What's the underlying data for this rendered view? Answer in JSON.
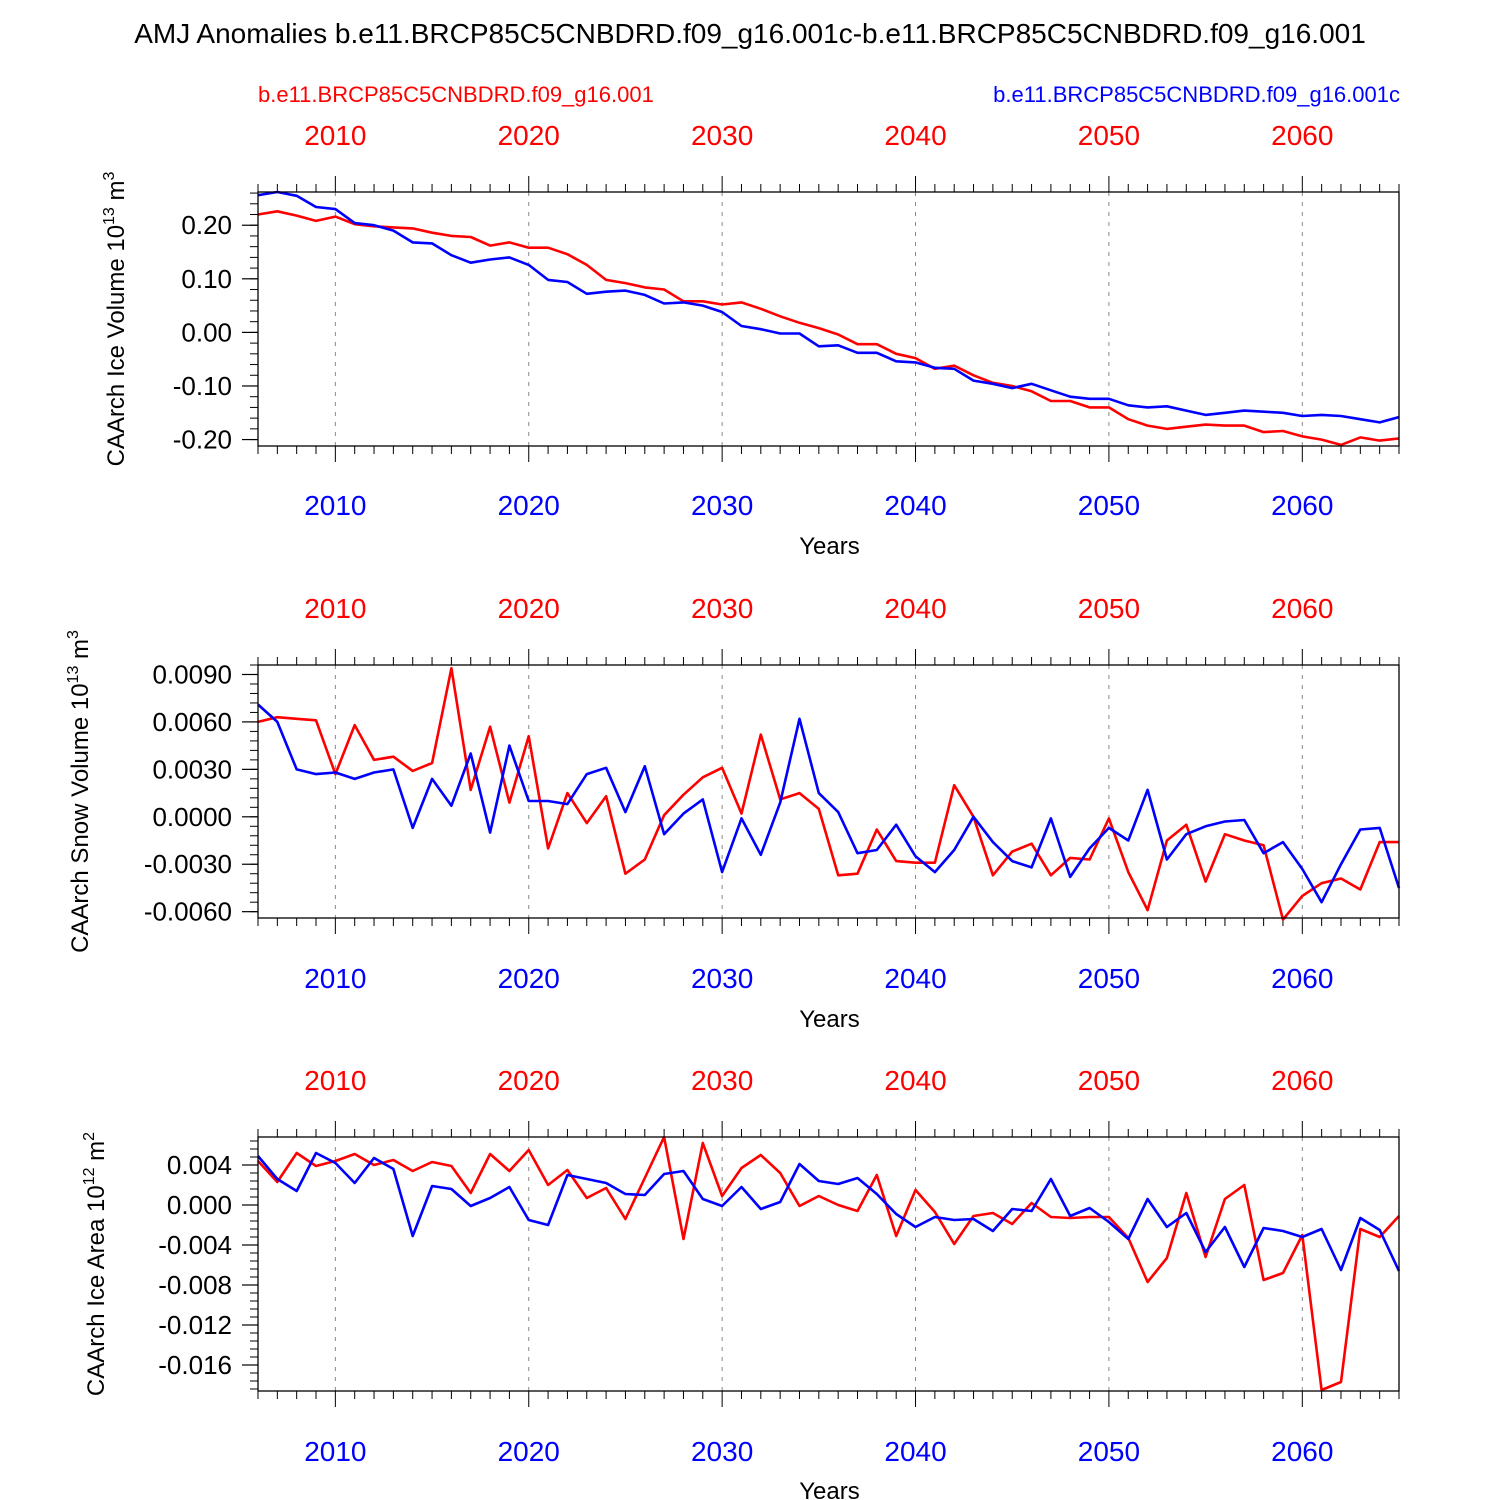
{
  "title": "AMJ Anomalies b.e11.BRCP85C5CNBDRD.f09_g16.001c-b.e11.BRCP85C5CNBDRD.f09_g16.001",
  "legend": {
    "red_label": "b.e11.BRCP85C5CNBDRD.f09_g16.001",
    "blue_label": "b.e11.BRCP85C5CNBDRD.f09_g16.001c"
  },
  "colors": {
    "red": "#ff0000",
    "blue": "#0000ff",
    "axis": "#000000",
    "grid": "#888888"
  },
  "chart_data": [
    {
      "type": "line",
      "title": "",
      "xlabel": "Years",
      "ylabel_main": "CAArch Ice Volume 10",
      "ylabel_exp": "13",
      "ylabel_unit": " m",
      "ylabel_unit_exp": "3",
      "xlim": [
        2006,
        2065
      ],
      "ylim": [
        -0.212,
        0.262
      ],
      "xticks": [
        2010,
        2020,
        2030,
        2040,
        2050,
        2060
      ],
      "xtick_labels": [
        "2010",
        "2020",
        "2030",
        "2040",
        "2050",
        "2060"
      ],
      "yticks": [
        0.2,
        0.1,
        0.0,
        -0.1,
        -0.2
      ],
      "ytick_labels": [
        "0.20",
        "0.10",
        "0.00",
        "-0.10",
        "-0.20"
      ],
      "ytick_minor": 0.02,
      "grid": "vertical-dashed",
      "series": [
        {
          "name": "b.e11.BRCP85C5CNBDRD.f09_g16.001",
          "color": "red",
          "start_year": 2006,
          "values": [
            0.22,
            0.226,
            0.218,
            0.208,
            0.216,
            0.202,
            0.198,
            0.196,
            0.194,
            0.186,
            0.18,
            0.178,
            0.162,
            0.168,
            0.158,
            0.158,
            0.146,
            0.126,
            0.098,
            0.092,
            0.084,
            0.08,
            0.058,
            0.058,
            0.052,
            0.056,
            0.044,
            0.03,
            0.018,
            0.008,
            -0.004,
            -0.022,
            -0.022,
            -0.04,
            -0.048,
            -0.068,
            -0.062,
            -0.08,
            -0.094,
            -0.1,
            -0.11,
            -0.128,
            -0.128,
            -0.14,
            -0.14,
            -0.162,
            -0.174,
            -0.18,
            -0.176,
            -0.172,
            -0.174,
            -0.174,
            -0.186,
            -0.184,
            -0.194,
            -0.2,
            -0.21,
            -0.196,
            -0.202,
            -0.198
          ]
        },
        {
          "name": "b.e11.BRCP85C5CNBDRD.f09_g16.001c",
          "color": "blue",
          "start_year": 2006,
          "values": [
            0.256,
            0.262,
            0.255,
            0.234,
            0.23,
            0.204,
            0.2,
            0.19,
            0.168,
            0.166,
            0.144,
            0.13,
            0.136,
            0.14,
            0.126,
            0.098,
            0.094,
            0.072,
            0.076,
            0.078,
            0.07,
            0.054,
            0.056,
            0.05,
            0.038,
            0.012,
            0.006,
            -0.002,
            -0.002,
            -0.026,
            -0.024,
            -0.038,
            -0.038,
            -0.054,
            -0.056,
            -0.066,
            -0.068,
            -0.09,
            -0.096,
            -0.104,
            -0.096,
            -0.108,
            -0.12,
            -0.124,
            -0.124,
            -0.136,
            -0.14,
            -0.138,
            -0.146,
            -0.154,
            -0.15,
            -0.146,
            -0.148,
            -0.15,
            -0.156,
            -0.154,
            -0.156,
            -0.162,
            -0.168,
            -0.158
          ]
        }
      ]
    },
    {
      "type": "line",
      "title": "",
      "xlabel": "Years",
      "ylabel_main": "CAArch Snow Volume 10",
      "ylabel_exp": "13",
      "ylabel_unit": " m",
      "ylabel_unit_exp": "3",
      "xlim": [
        2006,
        2065
      ],
      "ylim": [
        -0.0064,
        0.0096
      ],
      "xticks": [
        2010,
        2020,
        2030,
        2040,
        2050,
        2060
      ],
      "xtick_labels": [
        "2010",
        "2020",
        "2030",
        "2040",
        "2050",
        "2060"
      ],
      "yticks": [
        0.009,
        0.006,
        0.003,
        0.0,
        -0.003,
        -0.006
      ],
      "ytick_labels": [
        "0.0090",
        "0.0060",
        "0.0030",
        "0.0000",
        "-0.0030",
        "-0.0060"
      ],
      "ytick_minor": 0.0006,
      "grid": "vertical-dashed",
      "series": [
        {
          "name": "b.e11.BRCP85C5CNBDRD.f09_g16.001",
          "color": "red",
          "start_year": 2006,
          "values": [
            0.006,
            0.0063,
            0.0062,
            0.0061,
            0.0027,
            0.0058,
            0.0036,
            0.0038,
            0.0029,
            0.0034,
            0.0094,
            0.0017,
            0.0057,
            0.0009,
            0.0051,
            -0.002,
            0.0015,
            -0.0004,
            0.0013,
            -0.0036,
            -0.0027,
            0.0001,
            0.0014,
            0.0025,
            0.0031,
            0.0002,
            0.0052,
            0.0011,
            0.0015,
            0.0005,
            -0.0037,
            -0.0036,
            -0.0008,
            -0.0028,
            -0.0029,
            -0.0029,
            0.002,
            0.0,
            -0.0037,
            -0.0022,
            -0.0017,
            -0.0037,
            -0.0026,
            -0.0027,
            -0.0001,
            -0.0035,
            -0.0059,
            -0.0015,
            -0.0005,
            -0.0041,
            -0.0011,
            -0.0015,
            -0.0018,
            -0.0065,
            -0.005,
            -0.0042,
            -0.0039,
            -0.0046,
            -0.0016,
            -0.0016
          ]
        },
        {
          "name": "b.e11.BRCP85C5CNBDRD.f09_g16.001c",
          "color": "blue",
          "start_year": 2006,
          "values": [
            0.0071,
            0.006,
            0.003,
            0.0027,
            0.0028,
            0.0024,
            0.0028,
            0.003,
            -0.0007,
            0.0024,
            0.0007,
            0.004,
            -0.001,
            0.0045,
            0.001,
            0.001,
            0.0008,
            0.0027,
            0.0031,
            0.0003,
            0.0032,
            -0.0011,
            0.0002,
            0.0011,
            -0.0035,
            -0.0001,
            -0.0024,
            0.0009,
            0.0062,
            0.0015,
            0.0003,
            -0.0023,
            -0.0021,
            -0.0005,
            -0.0025,
            -0.0035,
            -0.0021,
            0.0,
            -0.0016,
            -0.0028,
            -0.0032,
            -0.0001,
            -0.0038,
            -0.002,
            -0.0007,
            -0.0015,
            0.0017,
            -0.0027,
            -0.0011,
            -0.0006,
            -0.0003,
            -0.0002,
            -0.0023,
            -0.0016,
            -0.0033,
            -0.0054,
            -0.003,
            -0.0008,
            -0.0007,
            -0.0045
          ]
        }
      ]
    },
    {
      "type": "line",
      "title": "",
      "xlabel": "Years",
      "ylabel_main": "CAArch Ice Area 10",
      "ylabel_exp": "12",
      "ylabel_unit": " m",
      "ylabel_unit_exp": "2",
      "xlim": [
        2006,
        2065
      ],
      "ylim": [
        -0.0186,
        0.0068
      ],
      "xticks": [
        2010,
        2020,
        2030,
        2040,
        2050,
        2060
      ],
      "xtick_labels": [
        "2010",
        "2020",
        "2030",
        "2040",
        "2050",
        "2060"
      ],
      "yticks": [
        0.004,
        0.0,
        -0.004,
        -0.008,
        -0.012,
        -0.016
      ],
      "ytick_labels": [
        "0.004",
        "0.000",
        "-0.004",
        "-0.008",
        "-0.012",
        "-0.016"
      ],
      "ytick_minor": 0.0008,
      "grid": "vertical-dashed",
      "series": [
        {
          "name": "b.e11.BRCP85C5CNBDRD.f09_g16.001",
          "color": "red",
          "start_year": 2006,
          "values": [
            0.0044,
            0.0023,
            0.0052,
            0.0039,
            0.0044,
            0.0051,
            0.004,
            0.0045,
            0.0034,
            0.0043,
            0.0039,
            0.0012,
            0.0051,
            0.0034,
            0.0055,
            0.002,
            0.0035,
            0.0007,
            0.0017,
            -0.0014,
            0.0027,
            0.0068,
            -0.0034,
            0.0062,
            0.0009,
            0.0037,
            0.005,
            0.0032,
            -0.0001,
            0.0009,
            0.0,
            -0.0006,
            0.003,
            -0.0031,
            0.0015,
            -0.0007,
            -0.0039,
            -0.0011,
            -0.0008,
            -0.0019,
            0.0002,
            -0.0012,
            -0.0013,
            -0.0012,
            -0.0012,
            -0.0033,
            -0.0077,
            -0.0053,
            0.0012,
            -0.0052,
            0.0006,
            0.002,
            -0.0075,
            -0.0068,
            -0.003,
            -0.0185,
            -0.0177,
            -0.0024,
            -0.0032,
            -0.0011
          ]
        },
        {
          "name": "b.e11.BRCP85C5CNBDRD.f09_g16.001c",
          "color": "blue",
          "start_year": 2006,
          "values": [
            0.0049,
            0.0026,
            0.0014,
            0.0052,
            0.0042,
            0.0022,
            0.0047,
            0.0036,
            -0.0031,
            0.0019,
            0.0016,
            -0.0001,
            0.0007,
            0.0018,
            -0.0015,
            -0.002,
            0.003,
            0.0026,
            0.0022,
            0.0011,
            0.001,
            0.0031,
            0.0034,
            0.0006,
            -0.0001,
            0.0018,
            -0.0004,
            0.0003,
            0.0041,
            0.0024,
            0.0021,
            0.0027,
            0.0011,
            -0.0009,
            -0.0022,
            -0.0012,
            -0.0015,
            -0.0014,
            -0.0026,
            -0.0004,
            -0.0006,
            0.0026,
            -0.0011,
            -0.0003,
            -0.0017,
            -0.0034,
            0.0006,
            -0.0022,
            -0.0008,
            -0.0047,
            -0.0022,
            -0.0062,
            -0.0023,
            -0.0026,
            -0.0032,
            -0.0024,
            -0.0065,
            -0.0013,
            -0.0025,
            -0.0066
          ]
        }
      ]
    }
  ]
}
